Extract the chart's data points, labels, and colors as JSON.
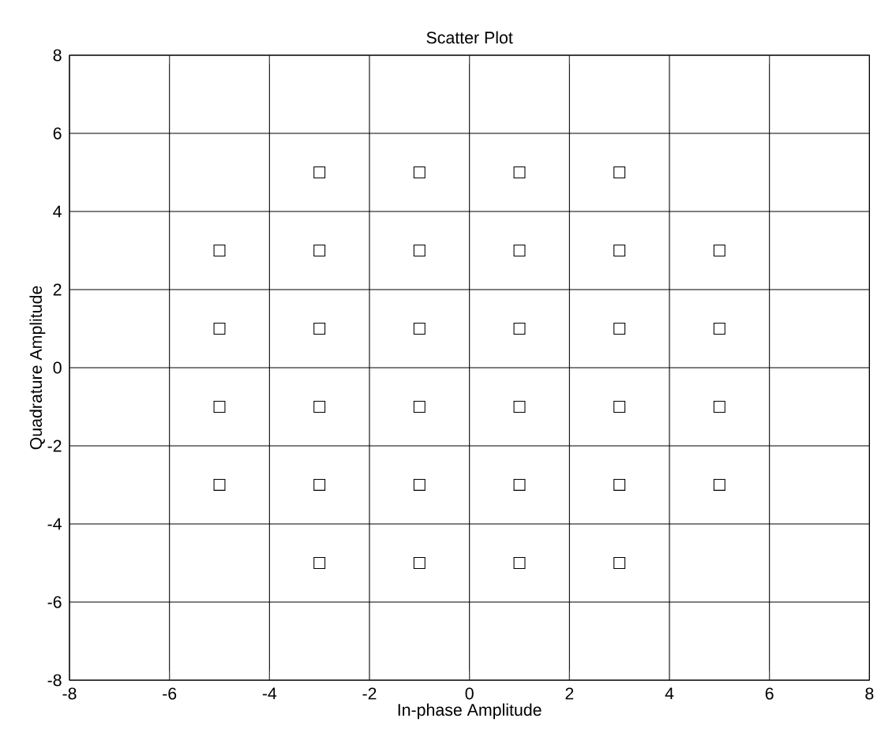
{
  "chart_data": {
    "type": "scatter",
    "title": "Scatter Plot",
    "xlabel": "In-phase Amplitude",
    "ylabel": "Quadrature Amplitude",
    "x": [
      -3,
      -1,
      1,
      3,
      -5,
      -3,
      -1,
      1,
      3,
      5,
      -5,
      -3,
      -1,
      1,
      3,
      5,
      -5,
      -3,
      -1,
      1,
      3,
      5,
      -5,
      -3,
      -1,
      1,
      3,
      5,
      -3,
      -1,
      1,
      3
    ],
    "values": [
      5,
      5,
      5,
      5,
      3,
      3,
      3,
      3,
      3,
      3,
      1,
      1,
      1,
      1,
      1,
      1,
      -1,
      -1,
      -1,
      -1,
      -1,
      -1,
      -3,
      -3,
      -3,
      -3,
      -3,
      -3,
      -5,
      -5,
      -5,
      -5
    ],
    "color": "#000000",
    "marker": "square",
    "xlim": [
      -8,
      8
    ],
    "ylim": [
      -8,
      8
    ],
    "xticks": [
      -8,
      -6,
      -4,
      -2,
      0,
      2,
      4,
      6,
      8
    ],
    "yticks": [
      -8,
      -6,
      -4,
      -2,
      0,
      2,
      4,
      6,
      8
    ],
    "grid": true
  }
}
